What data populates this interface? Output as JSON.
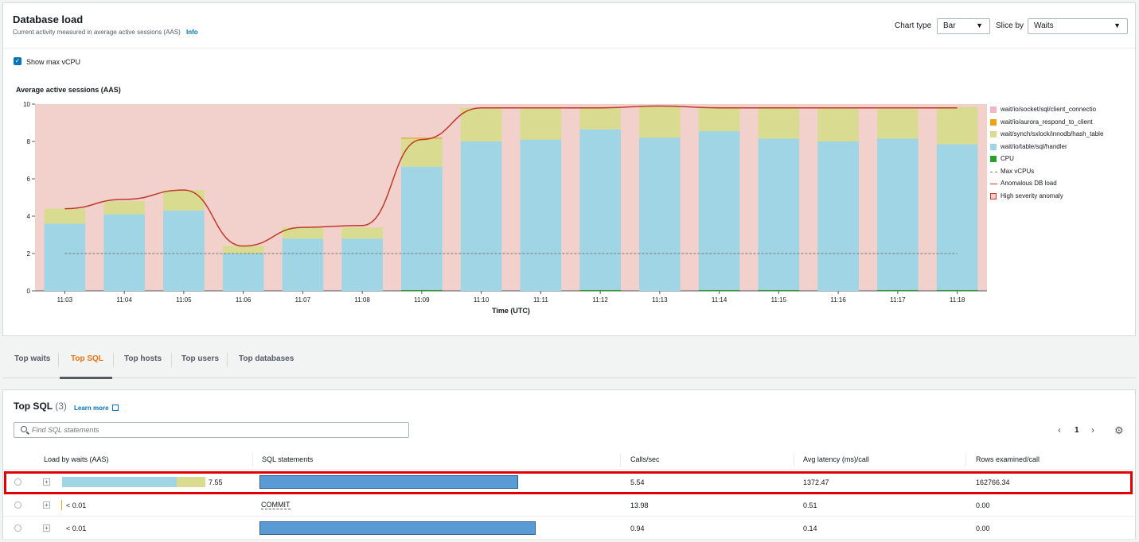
{
  "load": {
    "title": "Database load",
    "description": "Current activity measured in average active sessions (AAS)",
    "info_link": "Info",
    "chart_type_label": "Chart type",
    "chart_type_value": "Bar",
    "slice_by_label": "Slice by",
    "slice_by_value": "Waits",
    "show_max_vcpu_label": "Show max vCPU",
    "show_max_vcpu_checked": true
  },
  "chart_data": {
    "type": "bar",
    "title": "Average active sessions (AAS)",
    "xlabel": "Time (UTC)",
    "ylabel": "",
    "ylim": [
      0,
      10
    ],
    "yticks": [
      0,
      2,
      4,
      6,
      8,
      10
    ],
    "categories": [
      "11:03",
      "11:04",
      "11:05",
      "11:06",
      "11:07",
      "11:08",
      "11:09",
      "11:10",
      "11:11",
      "11:12",
      "11:13",
      "11:14",
      "11:15",
      "11:16",
      "11:17",
      "11:18"
    ],
    "series": [
      {
        "name": "CPU",
        "color": "#2ca02c",
        "values": [
          0,
          0,
          0,
          0,
          0,
          0,
          0.05,
          0,
          0,
          0.05,
          0,
          0.05,
          0.05,
          0,
          0.05,
          0.05
        ]
      },
      {
        "name": "wait/io/table/sql/handler",
        "color": "#9fd5e4",
        "values": [
          3.6,
          4.1,
          4.3,
          2.0,
          2.8,
          2.8,
          6.6,
          8.0,
          8.1,
          8.6,
          8.2,
          8.5,
          8.1,
          8.0,
          8.1,
          7.8
        ]
      },
      {
        "name": "wait/synch/sxlock/innodb/hash_table",
        "color": "#d9dc90",
        "values": [
          0.8,
          0.7,
          1.1,
          0.4,
          0.6,
          0.6,
          1.5,
          1.8,
          1.7,
          1.2,
          1.7,
          1.3,
          1.7,
          1.8,
          1.6,
          2.0
        ]
      },
      {
        "name": "wait/io/aurora_respond_to_client",
        "color": "#e8a317",
        "values": [
          0,
          0,
          0,
          0,
          0,
          0,
          0.05,
          0,
          0,
          0,
          0,
          0,
          0,
          0,
          0,
          0
        ]
      },
      {
        "name": "wait/io/socket/sql/client_connectio",
        "color": "#f0b6c8",
        "values": [
          0,
          0,
          0,
          0,
          0,
          0,
          0,
          0,
          0,
          0,
          0,
          0,
          0,
          0,
          0,
          0
        ]
      }
    ],
    "max_vcpus": 2,
    "anomalous_db_load": [
      4.4,
      4.9,
      5.4,
      2.4,
      3.4,
      3.5,
      8.1,
      9.8,
      9.8,
      9.8,
      9.9,
      9.8,
      9.8,
      9.8,
      9.8,
      9.8
    ],
    "high_severity_anomaly_range": [
      0,
      10
    ],
    "legend": [
      {
        "label": "wait/io/socket/sql/client_connectio",
        "kind": "swatch",
        "color": "#f0b6c8"
      },
      {
        "label": "wait/io/aurora_respond_to_client",
        "kind": "swatch",
        "color": "#e8a317"
      },
      {
        "label": "wait/synch/sxlock/innodb/hash_table",
        "kind": "swatch",
        "color": "#d9dc90"
      },
      {
        "label": "wait/io/table/sql/handler",
        "kind": "swatch",
        "color": "#9fd5e4"
      },
      {
        "label": "CPU",
        "kind": "swatch",
        "color": "#2ca02c"
      },
      {
        "label": "Max vCPUs",
        "kind": "dashed",
        "color": "#777777"
      },
      {
        "label": "Anomalous DB load",
        "kind": "line",
        "color": "#c0392b"
      },
      {
        "label": "High severity anomaly",
        "kind": "swatch-outline",
        "color": "#f2d0cb"
      }
    ],
    "legend_position": "right"
  },
  "tabs": [
    "Top waits",
    "Top SQL",
    "Top hosts",
    "Top users",
    "Top databases"
  ],
  "active_tab": "Top SQL",
  "top_sql": {
    "title": "Top SQL",
    "count": "(3)",
    "learn_more": "Learn more",
    "search_placeholder": "Find SQL statements",
    "page": "1",
    "columns": [
      "Load by waits (AAS)",
      "SQL statements",
      "Calls/sec",
      "Avg latency (ms)/call",
      "Rows examined/call"
    ],
    "rows": [
      {
        "load": "7.55",
        "load_handler_fraction": 0.8,
        "load_hash_fraction": 0.2,
        "sql": "",
        "calls": "5.54",
        "latency": "1372.47",
        "rows": "162766.34"
      },
      {
        "load": "< 0.01",
        "sql": "COMMIT",
        "calls": "13.98",
        "latency": "0.51",
        "rows": "0.00"
      },
      {
        "load": "< 0.01",
        "sql": "",
        "calls": "0.94",
        "latency": "0.14",
        "rows": "0.00"
      }
    ]
  }
}
